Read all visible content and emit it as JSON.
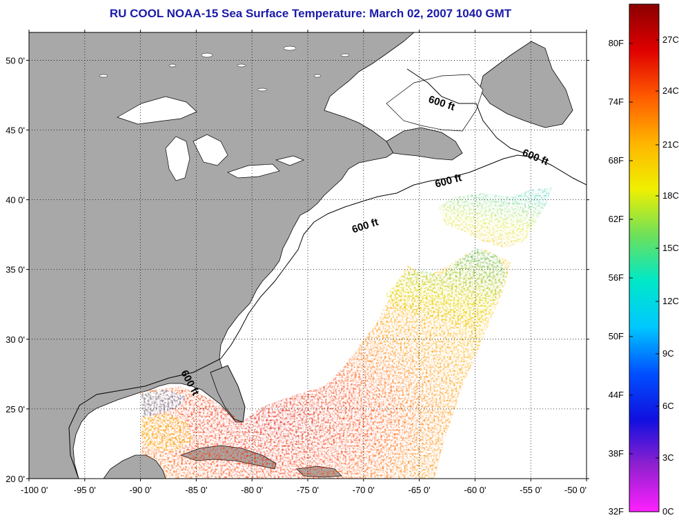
{
  "title": "RU COOL  NOAA-15  Sea Surface Temperature:  March 02, 2007 1040 GMT",
  "map": {
    "lon_range": [
      -100,
      -50
    ],
    "lat_range": [
      20,
      52
    ],
    "lat_labels": [
      {
        "value": 50,
        "label": "50 0'"
      },
      {
        "value": 45,
        "label": "45 0'"
      },
      {
        "value": 40,
        "label": "40 0'"
      },
      {
        "value": 35,
        "label": "35 0'"
      },
      {
        "value": 30,
        "label": "30 0'"
      },
      {
        "value": 25,
        "label": "25 0'"
      },
      {
        "value": 20,
        "label": "20 0'"
      }
    ],
    "lon_labels": [
      {
        "value": -100,
        "label": "-100 0'"
      },
      {
        "value": -95,
        "label": "-95 0'"
      },
      {
        "value": -90,
        "label": "-90 0'"
      },
      {
        "value": -85,
        "label": "-85 0'"
      },
      {
        "value": -80,
        "label": "-80 0'"
      },
      {
        "value": -75,
        "label": "-75 0'"
      },
      {
        "value": -70,
        "label": "-70 0'"
      },
      {
        "value": -65,
        "label": "-65 0'"
      },
      {
        "value": -60,
        "label": "-60 0'"
      },
      {
        "value": -55,
        "label": "-55 0'"
      },
      {
        "value": -50,
        "label": "-50 0'"
      }
    ],
    "grid": "dotted",
    "isobath_labels": [
      "600 ft",
      "600 ft",
      "600 ft",
      "600 ft",
      "600 ft"
    ],
    "land_color": "#a8a8a8",
    "ocean_color": "#ffffff"
  },
  "colorbar": {
    "fahrenheit_labels": [
      "80F",
      "74F",
      "68F",
      "62F",
      "56F",
      "50F",
      "44F",
      "38F",
      "32F"
    ],
    "celsius_labels": [
      "27C",
      "24C",
      "21C",
      "18C",
      "15C",
      "12C",
      "9C",
      "6C",
      "3C",
      "0C"
    ],
    "gradient_colors": [
      "#8b0000",
      "#e00000",
      "#ff5a00",
      "#ffb400",
      "#f0f000",
      "#6ee05a",
      "#00e8c8",
      "#00c8ff",
      "#0050ff",
      "#1010e0",
      "#9020d0",
      "#ff20ff"
    ]
  }
}
